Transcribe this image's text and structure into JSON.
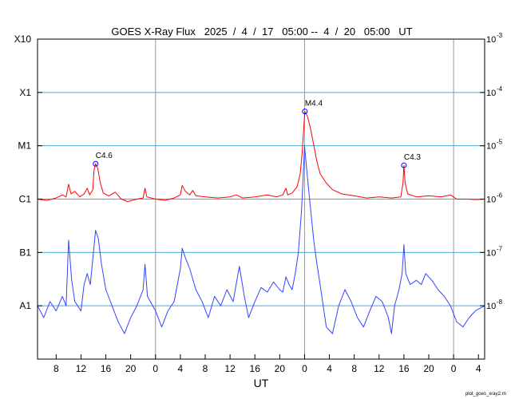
{
  "chart_data": {
    "type": "line",
    "title": "GOES X-Ray Flux   2025  /  4  /  17   05:00 --  4  /  20   05:00   UT",
    "xlabel": "UT",
    "x_tick_labels": [
      "8",
      "12",
      "16",
      "20",
      "0",
      "4",
      "8",
      "12",
      "16",
      "20",
      "0",
      "4",
      "8",
      "12",
      "16",
      "20",
      "0",
      "4"
    ],
    "x_tick_hours": [
      8,
      12,
      16,
      20,
      24,
      28,
      32,
      36,
      40,
      44,
      48,
      52,
      56,
      60,
      64,
      68,
      72,
      76
    ],
    "x_range_hours": [
      5,
      77
    ],
    "day_boundary_hours": [
      24,
      48,
      72
    ],
    "y_scale": "log",
    "y_range_wm2": [
      1e-09,
      0.001
    ],
    "left_axis_labels": [
      {
        "label": "X10",
        "flux": 0.001
      },
      {
        "label": "X1",
        "flux": 0.0001
      },
      {
        "label": "M1",
        "flux": 1e-05
      },
      {
        "label": "C1",
        "flux": 1e-06
      },
      {
        "label": "B1",
        "flux": 1e-07
      },
      {
        "label": "A1",
        "flux": 1e-08
      }
    ],
    "right_axis_labels": [
      {
        "base": "10",
        "exp": "-3",
        "flux": 0.001
      },
      {
        "base": "10",
        "exp": "-4",
        "flux": 0.0001
      },
      {
        "base": "10",
        "exp": "-5",
        "flux": 1e-05
      },
      {
        "base": "10",
        "exp": "-6",
        "flux": 1e-06
      },
      {
        "base": "10",
        "exp": "-7",
        "flux": 1e-07
      },
      {
        "base": "10",
        "exp": "-8",
        "flux": 1e-08
      }
    ],
    "grid": true,
    "colors": {
      "long_channel": "#ff0000",
      "short_channel": "#3344ff",
      "short_channel_low": "#6a1ec8",
      "grid": "#4aa8e0",
      "day_line": "#999999",
      "marker": "#0000ff"
    },
    "series": [
      {
        "color": "#ff0000",
        "points": [
          [
            5.0,
            1e-06
          ],
          [
            6.5,
            9.5e-07
          ],
          [
            8.0,
            1.05e-06
          ],
          [
            9.0,
            1.2e-06
          ],
          [
            9.6,
            1.1e-06
          ],
          [
            10.0,
            1.9e-06
          ],
          [
            10.4,
            1.25e-06
          ],
          [
            11.0,
            1.4e-06
          ],
          [
            11.8,
            1.1e-06
          ],
          [
            12.5,
            1.25e-06
          ],
          [
            13.0,
            1.6e-06
          ],
          [
            13.4,
            1.2e-06
          ],
          [
            13.9,
            1.5e-06
          ],
          [
            14.1,
            3.5e-06
          ],
          [
            14.35,
            4.6e-06
          ],
          [
            14.7,
            3.8e-06
          ],
          [
            15.1,
            2e-06
          ],
          [
            15.6,
            1.3e-06
          ],
          [
            16.5,
            1.15e-06
          ],
          [
            17.5,
            1.35e-06
          ],
          [
            18.5,
            1e-06
          ],
          [
            19.5,
            9e-07
          ],
          [
            21.0,
            1e-06
          ],
          [
            22.0,
            1.05e-06
          ],
          [
            22.3,
            1.6e-06
          ],
          [
            22.6,
            1.1e-06
          ],
          [
            24.0,
            1e-06
          ],
          [
            25.5,
            9.5e-07
          ],
          [
            27.0,
            1.05e-06
          ],
          [
            28.0,
            1.2e-06
          ],
          [
            28.3,
            1.8e-06
          ],
          [
            28.8,
            1.4e-06
          ],
          [
            29.5,
            1.2e-06
          ],
          [
            30.0,
            1.45e-06
          ],
          [
            30.5,
            1.15e-06
          ],
          [
            32.0,
            1.1e-06
          ],
          [
            34.0,
            1.05e-06
          ],
          [
            36.0,
            1.1e-06
          ],
          [
            37.0,
            1.2e-06
          ],
          [
            38.0,
            1.05e-06
          ],
          [
            40.0,
            1.1e-06
          ],
          [
            42.0,
            1.2e-06
          ],
          [
            43.5,
            1.1e-06
          ],
          [
            44.5,
            1.2e-06
          ],
          [
            45.0,
            1.6e-06
          ],
          [
            45.3,
            1.2e-06
          ],
          [
            46.0,
            1.3e-06
          ],
          [
            46.8,
            1.7e-06
          ],
          [
            47.3,
            3e-06
          ],
          [
            47.6,
            7e-06
          ],
          [
            47.85,
            2e-05
          ],
          [
            48.05,
            4.4e-05
          ],
          [
            48.5,
            3.5e-05
          ],
          [
            49.0,
            2e-05
          ],
          [
            49.5,
            1e-05
          ],
          [
            50.0,
            5e-06
          ],
          [
            50.5,
            3e-06
          ],
          [
            51.5,
            2e-06
          ],
          [
            52.5,
            1.5e-06
          ],
          [
            54.0,
            1.25e-06
          ],
          [
            56.0,
            1.15e-06
          ],
          [
            58.0,
            1.05e-06
          ],
          [
            60.0,
            1.1e-06
          ],
          [
            62.0,
            1.05e-06
          ],
          [
            63.5,
            1.1e-06
          ],
          [
            63.85,
            2e-06
          ],
          [
            64.0,
            4.3e-06
          ],
          [
            64.2,
            2e-06
          ],
          [
            64.6,
            1.25e-06
          ],
          [
            66.0,
            1.1e-06
          ],
          [
            68.0,
            1.15e-06
          ],
          [
            70.0,
            1.1e-06
          ],
          [
            71.5,
            1.2e-06
          ],
          [
            72.5,
            1e-06
          ],
          [
            74.0,
            1e-06
          ],
          [
            75.5,
            9.8e-07
          ],
          [
            77.0,
            1e-06
          ]
        ]
      },
      {
        "color": "#3344ff",
        "points": [
          [
            5.0,
            1e-08
          ],
          [
            6.0,
            6e-09
          ],
          [
            7.0,
            1.2e-08
          ],
          [
            8.0,
            8e-09
          ],
          [
            9.0,
            1.5e-08
          ],
          [
            9.6,
            1e-08
          ],
          [
            10.0,
            1.7e-07
          ],
          [
            10.5,
            3e-08
          ],
          [
            11.0,
            1.2e-08
          ],
          [
            12.0,
            8e-09
          ],
          [
            12.5,
            2.5e-08
          ],
          [
            13.0,
            4e-08
          ],
          [
            13.5,
            2.5e-08
          ],
          [
            14.0,
            1e-07
          ],
          [
            14.35,
            2.6e-07
          ],
          [
            14.8,
            1.8e-07
          ],
          [
            15.3,
            6e-08
          ],
          [
            16.0,
            2e-08
          ],
          [
            17.0,
            1e-08
          ],
          [
            18.0,
            5e-09
          ],
          [
            19.0,
            3e-09
          ],
          [
            20.0,
            6e-09
          ],
          [
            21.0,
            1e-08
          ],
          [
            22.0,
            2e-08
          ],
          [
            22.3,
            6e-08
          ],
          [
            22.7,
            1.5e-08
          ],
          [
            24.0,
            8e-09
          ],
          [
            25.0,
            4e-09
          ],
          [
            26.0,
            8e-09
          ],
          [
            27.0,
            1.2e-08
          ],
          [
            28.0,
            5e-08
          ],
          [
            28.3,
            1.2e-07
          ],
          [
            28.8,
            8e-08
          ],
          [
            29.5,
            5e-08
          ],
          [
            30.5,
            2e-08
          ],
          [
            31.5,
            1.2e-08
          ],
          [
            32.5,
            6e-09
          ],
          [
            33.5,
            1.5e-08
          ],
          [
            34.5,
            1e-08
          ],
          [
            35.5,
            2e-08
          ],
          [
            36.5,
            1.2e-08
          ],
          [
            37.5,
            5.5e-08
          ],
          [
            38.3,
            1.5e-08
          ],
          [
            39.0,
            6e-09
          ],
          [
            40.0,
            1.2e-08
          ],
          [
            41.0,
            2.2e-08
          ],
          [
            42.0,
            1.8e-08
          ],
          [
            43.0,
            2.8e-08
          ],
          [
            44.0,
            2e-08
          ],
          [
            44.5,
            1.8e-08
          ],
          [
            45.0,
            3.5e-08
          ],
          [
            45.5,
            2.5e-08
          ],
          [
            46.0,
            2e-08
          ],
          [
            46.5,
            4e-08
          ],
          [
            47.0,
            1e-07
          ],
          [
            47.5,
            6e-07
          ],
          [
            47.85,
            4e-06
          ],
          [
            48.0,
            1e-05
          ],
          [
            48.4,
            3e-06
          ],
          [
            48.9,
            8e-07
          ],
          [
            49.5,
            1.6e-07
          ],
          [
            50.0,
            6e-08
          ],
          [
            50.5,
            2.5e-08
          ],
          [
            51.0,
            1e-08
          ],
          [
            51.5,
            4e-09
          ],
          [
            52.5,
            3e-09
          ],
          [
            53.5,
            1e-08
          ],
          [
            54.5,
            2e-08
          ],
          [
            55.5,
            1.2e-08
          ],
          [
            56.5,
            6e-09
          ],
          [
            57.5,
            4e-09
          ],
          [
            58.5,
            8e-09
          ],
          [
            59.5,
            1.5e-08
          ],
          [
            60.5,
            1.2e-08
          ],
          [
            61.5,
            6e-09
          ],
          [
            62.0,
            3e-09
          ],
          [
            62.5,
            1e-08
          ],
          [
            63.2,
            2e-08
          ],
          [
            63.7,
            4e-08
          ],
          [
            64.0,
            1.4e-07
          ],
          [
            64.3,
            4e-08
          ],
          [
            65.0,
            2.5e-08
          ],
          [
            66.0,
            3e-08
          ],
          [
            66.8,
            2.5e-08
          ],
          [
            67.5,
            4e-08
          ],
          [
            68.5,
            3e-08
          ],
          [
            69.5,
            2e-08
          ],
          [
            70.5,
            1.5e-08
          ],
          [
            71.5,
            1e-08
          ],
          [
            72.5,
            5e-09
          ],
          [
            73.5,
            4e-09
          ],
          [
            74.5,
            6e-09
          ],
          [
            75.5,
            8e-09
          ],
          [
            77.0,
            1e-08
          ]
        ]
      }
    ],
    "annotations": [
      {
        "label": "C4.6",
        "hour": 14.35,
        "flux": 4.6e-06
      },
      {
        "label": "M4.4",
        "hour": 48.05,
        "flux": 4.4e-05
      },
      {
        "label": "C4.3",
        "hour": 64.0,
        "flux": 4.3e-06
      }
    ]
  },
  "footer": {
    "credit": "plot_goes_xray2.rn"
  }
}
